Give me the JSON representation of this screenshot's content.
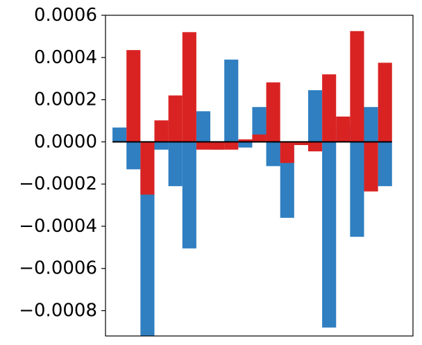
{
  "chart_data": {
    "type": "bar",
    "title": "",
    "xlabel": "",
    "ylabel": "",
    "ylim": [
      -0.00092,
      0.0006
    ],
    "x_ticks_visible": false,
    "grid": false,
    "legend": "none",
    "zero_line": true,
    "colors": {
      "blue": "#2f7fc1",
      "red": "#d92323",
      "zero_line": "#000000"
    },
    "y_ticks": [
      {
        "value": 0.0006,
        "label": "0.0006"
      },
      {
        "value": 0.0004,
        "label": "0.0004"
      },
      {
        "value": 0.0002,
        "label": "0.0002"
      },
      {
        "value": 0.0,
        "label": "0.0000"
      },
      {
        "value": -0.0002,
        "label": "−0.0002"
      },
      {
        "value": -0.0004,
        "label": "−0.0004"
      },
      {
        "value": -0.0006,
        "label": "−0.0006"
      },
      {
        "value": -0.0008,
        "label": "−0.0008"
      }
    ],
    "series": [
      {
        "color": "blue",
        "x": [
          0,
          2,
          4,
          6,
          8,
          10,
          12,
          14,
          16,
          18
        ],
        "values": [
          6.8e-05,
          -0.00092,
          -0.00021,
          0.000145,
          0.00039,
          0.000165,
          -0.00036,
          0.000245,
          7.5e-05,
          0.000165
        ]
      },
      {
        "color": "blue",
        "x": [
          1,
          3,
          5,
          7,
          9,
          11,
          13,
          15,
          17,
          19
        ],
        "values": [
          -0.00013,
          -3.7e-05,
          -0.000505,
          -3.7e-05,
          -2.7e-05,
          -0.000115,
          -1.5e-05,
          -0.00088,
          -0.00045,
          -0.00021
        ]
      },
      {
        "color": "red",
        "x": [
          1,
          3,
          5,
          7,
          9,
          11,
          13,
          15,
          17,
          19
        ],
        "values": [
          0.000435,
          0.000102,
          0.00052,
          -3.7e-05,
          1.2e-05,
          0.000282,
          -1.5e-05,
          0.00032,
          0.000525,
          0.000375
        ]
      },
      {
        "color": "red",
        "x": [
          2,
          4,
          6,
          8,
          10,
          12,
          14,
          16,
          18
        ],
        "values": [
          -0.00025,
          0.00022,
          -3.7e-05,
          -3.7e-05,
          3.5e-05,
          -0.0001,
          -4.5e-05,
          0.00012,
          -0.000235
        ]
      }
    ]
  }
}
